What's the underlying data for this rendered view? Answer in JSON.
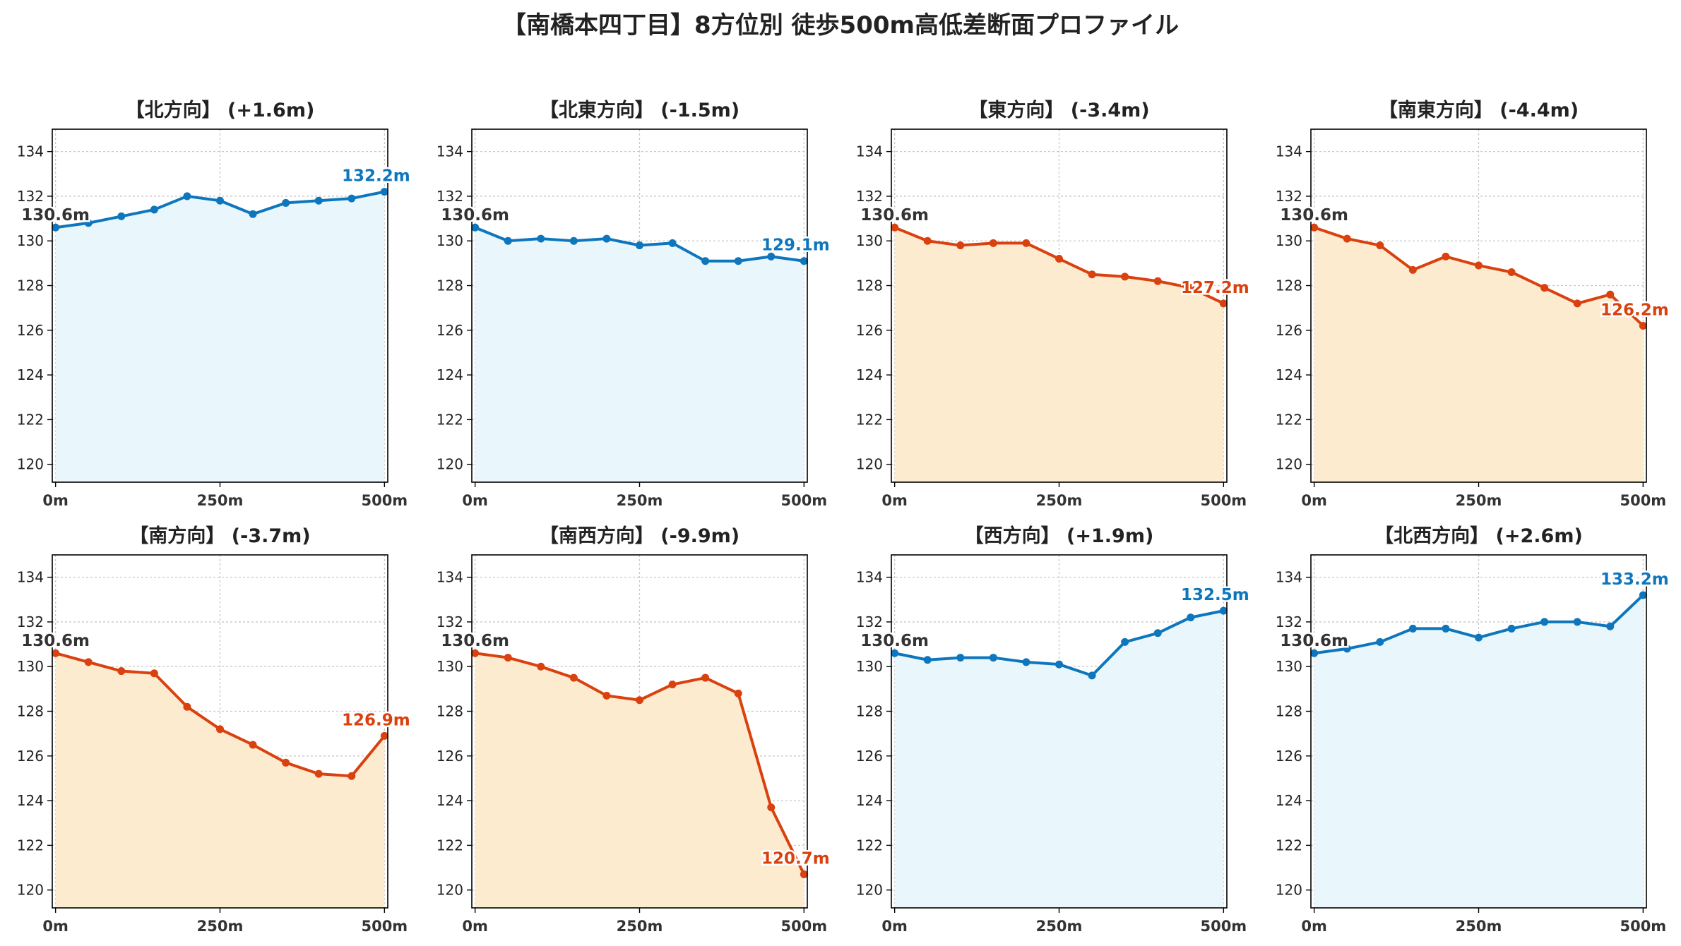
{
  "title": "【南橋本四丁目】8方位別 徒歩500m高低差断面プロファイル",
  "colors": {
    "up_line": "#0e76bd",
    "up_fill": "#e9f6fc",
    "down_line": "#d9410f",
    "down_fill": "#fdebd0",
    "start_label": "#333333",
    "grid": "#c8c8c8"
  },
  "chart_data": [
    {
      "type": "area",
      "title": "【北方向】 (+1.6m)",
      "trend": "up",
      "x": [
        0,
        50,
        100,
        150,
        200,
        250,
        300,
        350,
        400,
        450,
        500
      ],
      "y": [
        130.6,
        130.8,
        131.1,
        131.4,
        132.0,
        131.8,
        131.2,
        131.7,
        131.8,
        131.9,
        132.2
      ],
      "start_label": "130.6m",
      "end_label": "132.2m",
      "xticks": [
        "0m",
        "250m",
        "500m"
      ],
      "xtick_values": [
        0,
        250,
        500
      ],
      "yticks": [
        120,
        122,
        124,
        126,
        128,
        130,
        132,
        134
      ],
      "ylim": [
        119.2,
        135.0
      ],
      "xlim": [
        -5,
        505
      ],
      "grid": true
    },
    {
      "type": "area",
      "title": "【北東方向】 (-1.5m)",
      "trend": "up",
      "x": [
        0,
        50,
        100,
        150,
        200,
        250,
        300,
        350,
        400,
        450,
        500
      ],
      "y": [
        130.6,
        130.0,
        130.1,
        130.0,
        130.1,
        129.8,
        129.9,
        129.1,
        129.1,
        129.3,
        129.1
      ],
      "start_label": "130.6m",
      "end_label": "129.1m",
      "xticks": [
        "0m",
        "250m",
        "500m"
      ],
      "xtick_values": [
        0,
        250,
        500
      ],
      "yticks": [
        120,
        122,
        124,
        126,
        128,
        130,
        132,
        134
      ],
      "ylim": [
        119.2,
        135.0
      ],
      "xlim": [
        -5,
        505
      ],
      "grid": true
    },
    {
      "type": "area",
      "title": "【東方向】 (-3.4m)",
      "trend": "down",
      "x": [
        0,
        50,
        100,
        150,
        200,
        250,
        300,
        350,
        400,
        450,
        500
      ],
      "y": [
        130.6,
        130.0,
        129.8,
        129.9,
        129.9,
        129.2,
        128.5,
        128.4,
        128.2,
        127.9,
        127.2
      ],
      "start_label": "130.6m",
      "end_label": "127.2m",
      "xticks": [
        "0m",
        "250m",
        "500m"
      ],
      "xtick_values": [
        0,
        250,
        500
      ],
      "yticks": [
        120,
        122,
        124,
        126,
        128,
        130,
        132,
        134
      ],
      "ylim": [
        119.2,
        135.0
      ],
      "xlim": [
        -5,
        505
      ],
      "grid": true
    },
    {
      "type": "area",
      "title": "【南東方向】 (-4.4m)",
      "trend": "down",
      "x": [
        0,
        50,
        100,
        150,
        200,
        250,
        300,
        350,
        400,
        450,
        500
      ],
      "y": [
        130.6,
        130.1,
        129.8,
        128.7,
        129.3,
        128.9,
        128.6,
        127.9,
        127.2,
        127.6,
        126.2
      ],
      "start_label": "130.6m",
      "end_label": "126.2m",
      "xticks": [
        "0m",
        "250m",
        "500m"
      ],
      "xtick_values": [
        0,
        250,
        500
      ],
      "yticks": [
        120,
        122,
        124,
        126,
        128,
        130,
        132,
        134
      ],
      "ylim": [
        119.2,
        135.0
      ],
      "xlim": [
        -5,
        505
      ],
      "grid": true
    },
    {
      "type": "area",
      "title": "【南方向】 (-3.7m)",
      "trend": "down",
      "x": [
        0,
        50,
        100,
        150,
        200,
        250,
        300,
        350,
        400,
        450,
        500
      ],
      "y": [
        130.6,
        130.2,
        129.8,
        129.7,
        128.2,
        127.2,
        126.5,
        125.7,
        125.2,
        125.1,
        126.9
      ],
      "start_label": "130.6m",
      "end_label": "126.9m",
      "xticks": [
        "0m",
        "250m",
        "500m"
      ],
      "xtick_values": [
        0,
        250,
        500
      ],
      "yticks": [
        120,
        122,
        124,
        126,
        128,
        130,
        132,
        134
      ],
      "ylim": [
        119.2,
        135.0
      ],
      "xlim": [
        -5,
        505
      ],
      "grid": true
    },
    {
      "type": "area",
      "title": "【南西方向】 (-9.9m)",
      "trend": "down",
      "x": [
        0,
        50,
        100,
        150,
        200,
        250,
        300,
        350,
        400,
        450,
        500
      ],
      "y": [
        130.6,
        130.4,
        130.0,
        129.5,
        128.7,
        128.5,
        129.2,
        129.5,
        128.8,
        123.7,
        120.7
      ],
      "start_label": "130.6m",
      "end_label": "120.7m",
      "xticks": [
        "0m",
        "250m",
        "500m"
      ],
      "xtick_values": [
        0,
        250,
        500
      ],
      "yticks": [
        120,
        122,
        124,
        126,
        128,
        130,
        132,
        134
      ],
      "ylim": [
        119.2,
        135.0
      ],
      "xlim": [
        -5,
        505
      ],
      "grid": true
    },
    {
      "type": "area",
      "title": "【西方向】 (+1.9m)",
      "trend": "up",
      "x": [
        0,
        50,
        100,
        150,
        200,
        250,
        300,
        350,
        400,
        450,
        500
      ],
      "y": [
        130.6,
        130.3,
        130.4,
        130.4,
        130.2,
        130.1,
        129.6,
        131.1,
        131.5,
        132.2,
        132.5
      ],
      "start_label": "130.6m",
      "end_label": "132.5m",
      "xticks": [
        "0m",
        "250m",
        "500m"
      ],
      "xtick_values": [
        0,
        250,
        500
      ],
      "yticks": [
        120,
        122,
        124,
        126,
        128,
        130,
        132,
        134
      ],
      "ylim": [
        119.2,
        135.0
      ],
      "xlim": [
        -5,
        505
      ],
      "grid": true
    },
    {
      "type": "area",
      "title": "【北西方向】 (+2.6m)",
      "trend": "up",
      "x": [
        0,
        50,
        100,
        150,
        200,
        250,
        300,
        350,
        400,
        450,
        500
      ],
      "y": [
        130.6,
        130.8,
        131.1,
        131.7,
        131.7,
        131.3,
        131.7,
        132.0,
        132.0,
        131.8,
        133.2
      ],
      "start_label": "130.6m",
      "end_label": "133.2m",
      "xticks": [
        "0m",
        "250m",
        "500m"
      ],
      "xtick_values": [
        0,
        250,
        500
      ],
      "yticks": [
        120,
        122,
        124,
        126,
        128,
        130,
        132,
        134
      ],
      "ylim": [
        119.2,
        135.0
      ],
      "xlim": [
        -5,
        505
      ],
      "grid": true
    }
  ]
}
